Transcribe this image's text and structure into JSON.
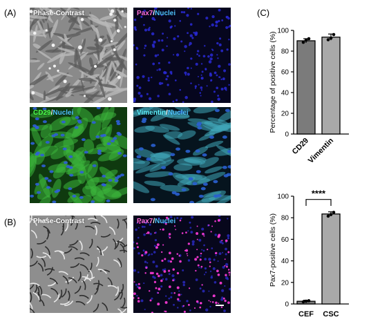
{
  "panels": {
    "A": "(A)",
    "B": "(B)",
    "C": "(C)"
  },
  "micrographs": {
    "a1": {
      "parts": [
        {
          "text": "Phase-Contrast",
          "color": "#ffffff"
        }
      ]
    },
    "a2": {
      "parts": [
        {
          "text": "Pax7",
          "color": "#ff6fd8"
        },
        {
          "text": "/",
          "color": "#ffffff"
        },
        {
          "text": "Nuclei",
          "color": "#4fc3ff"
        }
      ]
    },
    "a3": {
      "parts": [
        {
          "text": "CD29",
          "color": "#4cff4c"
        },
        {
          "text": "/",
          "color": "#ffffff"
        },
        {
          "text": "Nuclei",
          "color": "#4fc3ff"
        }
      ]
    },
    "a4": {
      "parts": [
        {
          "text": "Vimentin",
          "color": "#5ff0ff"
        },
        {
          "text": "/",
          "color": "#ffffff"
        },
        {
          "text": "Nuclei",
          "color": "#4fc3ff"
        }
      ]
    },
    "b1": {
      "parts": [
        {
          "text": "Phase-Contrast",
          "color": "#ffffff"
        }
      ]
    },
    "b2": {
      "parts": [
        {
          "text": "Pax7",
          "color": "#ff6fd8"
        },
        {
          "text": "/",
          "color": "#ffffff"
        },
        {
          "text": "Nuclei",
          "color": "#4fc3ff"
        }
      ]
    }
  },
  "chart_data": [
    {
      "type": "bar",
      "categories": [
        "CD29",
        "Vimentin"
      ],
      "values": [
        90,
        93.5
      ],
      "error": [
        2,
        3
      ],
      "points": [
        [
          88.5,
          90.5,
          92
        ],
        [
          91,
          92.5,
          96
        ]
      ],
      "colors": [
        "#7b7b7b",
        "#a9a9a9"
      ],
      "ylabel": "Percentage of positive cells  (%)",
      "ylim": [
        0,
        100
      ],
      "yticks": [
        "0",
        "20",
        "40",
        "60",
        "80",
        "100"
      ],
      "significance": ""
    },
    {
      "type": "bar",
      "categories": [
        "CEF",
        "CSC"
      ],
      "values": [
        2.5,
        83.5
      ],
      "error": [
        1,
        2
      ],
      "points": [
        [
          2,
          2.5,
          3
        ],
        [
          81.5,
          83,
          85
        ]
      ],
      "colors": [
        "#7b7b7b",
        "#a9a9a9"
      ],
      "ylabel": "Pax7-positive cells (%)",
      "ylim": [
        0,
        100
      ],
      "yticks": [
        "0",
        "20",
        "40",
        "60",
        "80",
        "100"
      ],
      "significance": "****"
    }
  ]
}
